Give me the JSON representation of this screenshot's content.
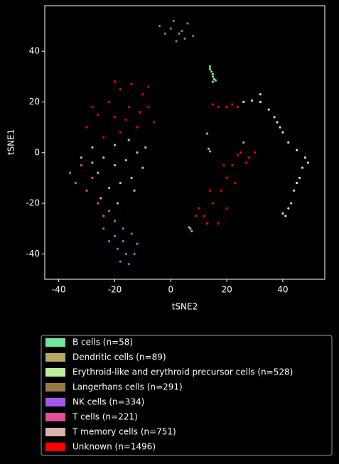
{
  "chart_data": {
    "type": "scatter",
    "x_label": "tSNE2",
    "y_label": "tSNE1",
    "xlim": [
      -45,
      55
    ],
    "ylim": [
      -50,
      58
    ],
    "xticks": [
      -40,
      -20,
      0,
      20,
      40
    ],
    "yticks": [
      -40,
      -20,
      0,
      20,
      40
    ],
    "legend": "below",
    "series": [
      {
        "name": "B cells (n=58)",
        "color": "#6ee8a0",
        "x": [
          14,
          14.5,
          15,
          15.5,
          15,
          14,
          15,
          16
        ],
        "y": [
          34,
          32,
          30,
          29,
          28,
          33,
          31,
          28.5
        ]
      },
      {
        "name": "Dendritic cells (n=89)",
        "color": "#b5aa60",
        "x": [
          13,
          13.5,
          14,
          26,
          7,
          7.5,
          6.5
        ],
        "y": [
          7.5,
          1.5,
          0.5,
          4,
          -30,
          -31,
          -29.5
        ]
      },
      {
        "name": "Erythroid-like and erythroid precursor cells (n=528)",
        "color": "#bdef9b",
        "x": [
          26,
          32,
          35,
          38,
          40,
          42,
          45,
          48,
          49,
          46,
          44,
          43,
          41,
          40,
          32,
          37,
          39,
          47,
          45,
          42,
          29
        ],
        "y": [
          20,
          23,
          17,
          12,
          8,
          4,
          1,
          -2,
          -4,
          -10,
          -15,
          -20,
          -25,
          -24,
          20,
          14,
          10,
          -6,
          -12,
          -22,
          20.5
        ]
      },
      {
        "name": "Langerhans cells (n=291)",
        "color": "#9b7a3f",
        "x": [
          -4,
          0,
          4,
          8,
          2,
          -2,
          6,
          1,
          5,
          3
        ],
        "y": [
          50,
          49,
          48,
          46,
          44,
          47,
          51,
          52,
          45,
          47
        ]
      },
      {
        "name": "NK cells (n=334)",
        "color": "#a259ea",
        "x": [
          -24,
          -20,
          -17,
          -14,
          -12,
          -16,
          -18,
          -15,
          -22,
          -19,
          -13,
          -17
        ],
        "y": [
          -30,
          -33,
          -30,
          -32,
          -36,
          -40,
          -43,
          -44,
          -35,
          -38,
          -40,
          -35
        ]
      },
      {
        "name": "T cells (n=221)",
        "color": "#e0509c",
        "x": [
          -36,
          -34,
          -30,
          -26,
          -24,
          -22,
          -28,
          -32,
          -20,
          -25
        ],
        "y": [
          -8,
          -12,
          -15,
          -20,
          -25,
          -23,
          -10,
          -5,
          -27,
          -18
        ]
      },
      {
        "name": "T memory cells (n=751)",
        "color": "#d8b3b0",
        "x": [
          -32,
          -28,
          -24,
          -20,
          -16,
          -12,
          -10,
          -14,
          -18,
          -22,
          -26,
          -20,
          -15,
          -25,
          -19,
          -9,
          -13,
          -28
        ],
        "y": [
          -2,
          2,
          -2,
          -5,
          -3,
          0,
          -6,
          -10,
          -12,
          -14,
          -8,
          3,
          5,
          -18,
          -20,
          2,
          -15,
          -4
        ]
      },
      {
        "name": "Unknown (n=1496)",
        "color": "#ff0000",
        "x": [
          -30,
          -26,
          -22,
          -18,
          -14,
          -10,
          -8,
          -6,
          -12,
          -18,
          -24,
          -20,
          -15,
          -28,
          -16,
          -11,
          -20,
          -8,
          15,
          17,
          20,
          22,
          24,
          10,
          12,
          15,
          18,
          20,
          22,
          24,
          25,
          27,
          17,
          13,
          20,
          23,
          19,
          14,
          9,
          28,
          30
        ],
        "y": [
          10,
          15,
          20,
          25,
          27,
          23,
          18,
          12,
          10,
          8,
          6,
          14,
          18,
          18,
          13,
          16,
          28,
          26,
          19,
          18,
          18,
          19,
          18,
          -22,
          -25,
          -20,
          -15,
          -10,
          -5,
          -1,
          0,
          -4,
          -28,
          -28,
          -22,
          -12,
          -5,
          -15,
          -25,
          -2,
          0
        ]
      }
    ]
  }
}
